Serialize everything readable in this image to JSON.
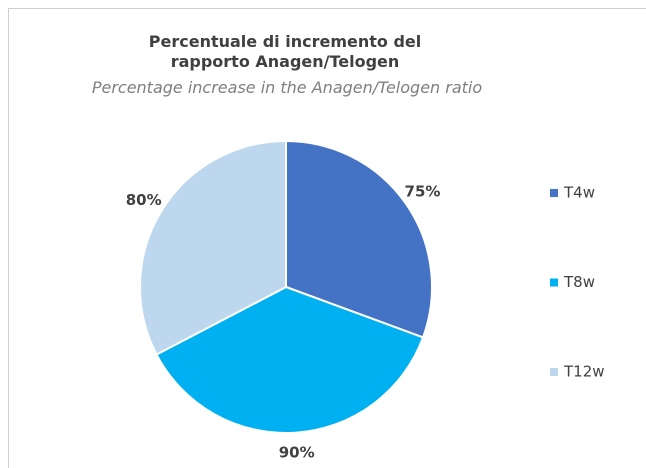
{
  "chart_data": {
    "type": "pie",
    "title": "Percentuale di incremento del rapporto Anagen/Telogen",
    "subtitle": "Percentage increase in the Anagen/Telogen ratio",
    "categories": [
      "T4w",
      "T8w",
      "T12w"
    ],
    "values": [
      75,
      90,
      80
    ],
    "value_labels": [
      "75%",
      "90%",
      "80%"
    ],
    "colors": [
      "#4472c4",
      "#00b0f0",
      "#bdd7ee"
    ],
    "legend": "right"
  }
}
